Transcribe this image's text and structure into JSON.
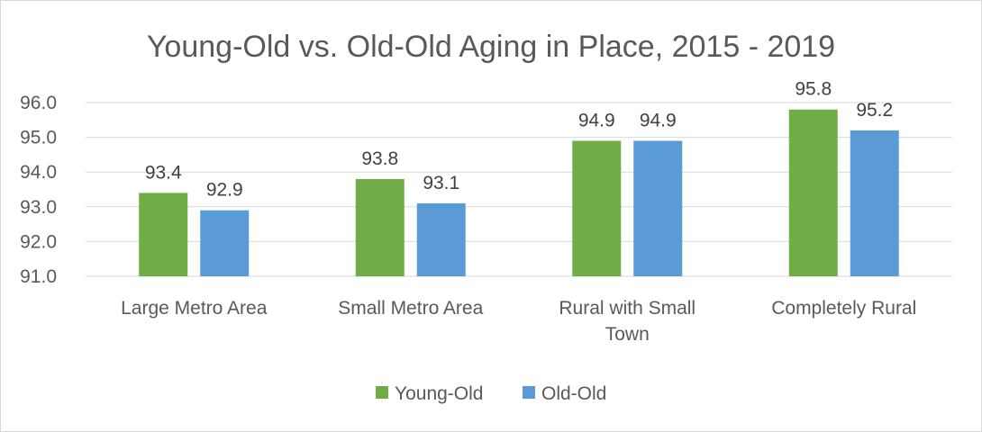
{
  "chart_data": {
    "type": "bar",
    "title": "Young-Old vs. Old-Old Aging in Place, 2015 - 2019",
    "categories": [
      [
        "Large Metro Area"
      ],
      [
        "Small Metro Area"
      ],
      [
        "Rural with Small",
        "Town"
      ],
      [
        "Completely Rural"
      ]
    ],
    "series": [
      {
        "name": "Young-Old",
        "color": "#70ad47",
        "values": [
          93.4,
          93.8,
          94.9,
          95.8
        ],
        "labels": [
          "93.4",
          "93.8",
          "94.9",
          "95.8"
        ]
      },
      {
        "name": "Old-Old",
        "color": "#5b9bd5",
        "values": [
          92.9,
          93.1,
          94.9,
          95.2
        ],
        "labels": [
          "92.9",
          "93.1",
          "94.9",
          "95.2"
        ]
      }
    ],
    "ylim": [
      91.0,
      96.0
    ],
    "yticks": [
      "91.0",
      "92.0",
      "93.0",
      "94.0",
      "95.0",
      "96.0"
    ],
    "xlabel": "",
    "ylabel": "",
    "grid": true,
    "legend_position": "bottom"
  }
}
